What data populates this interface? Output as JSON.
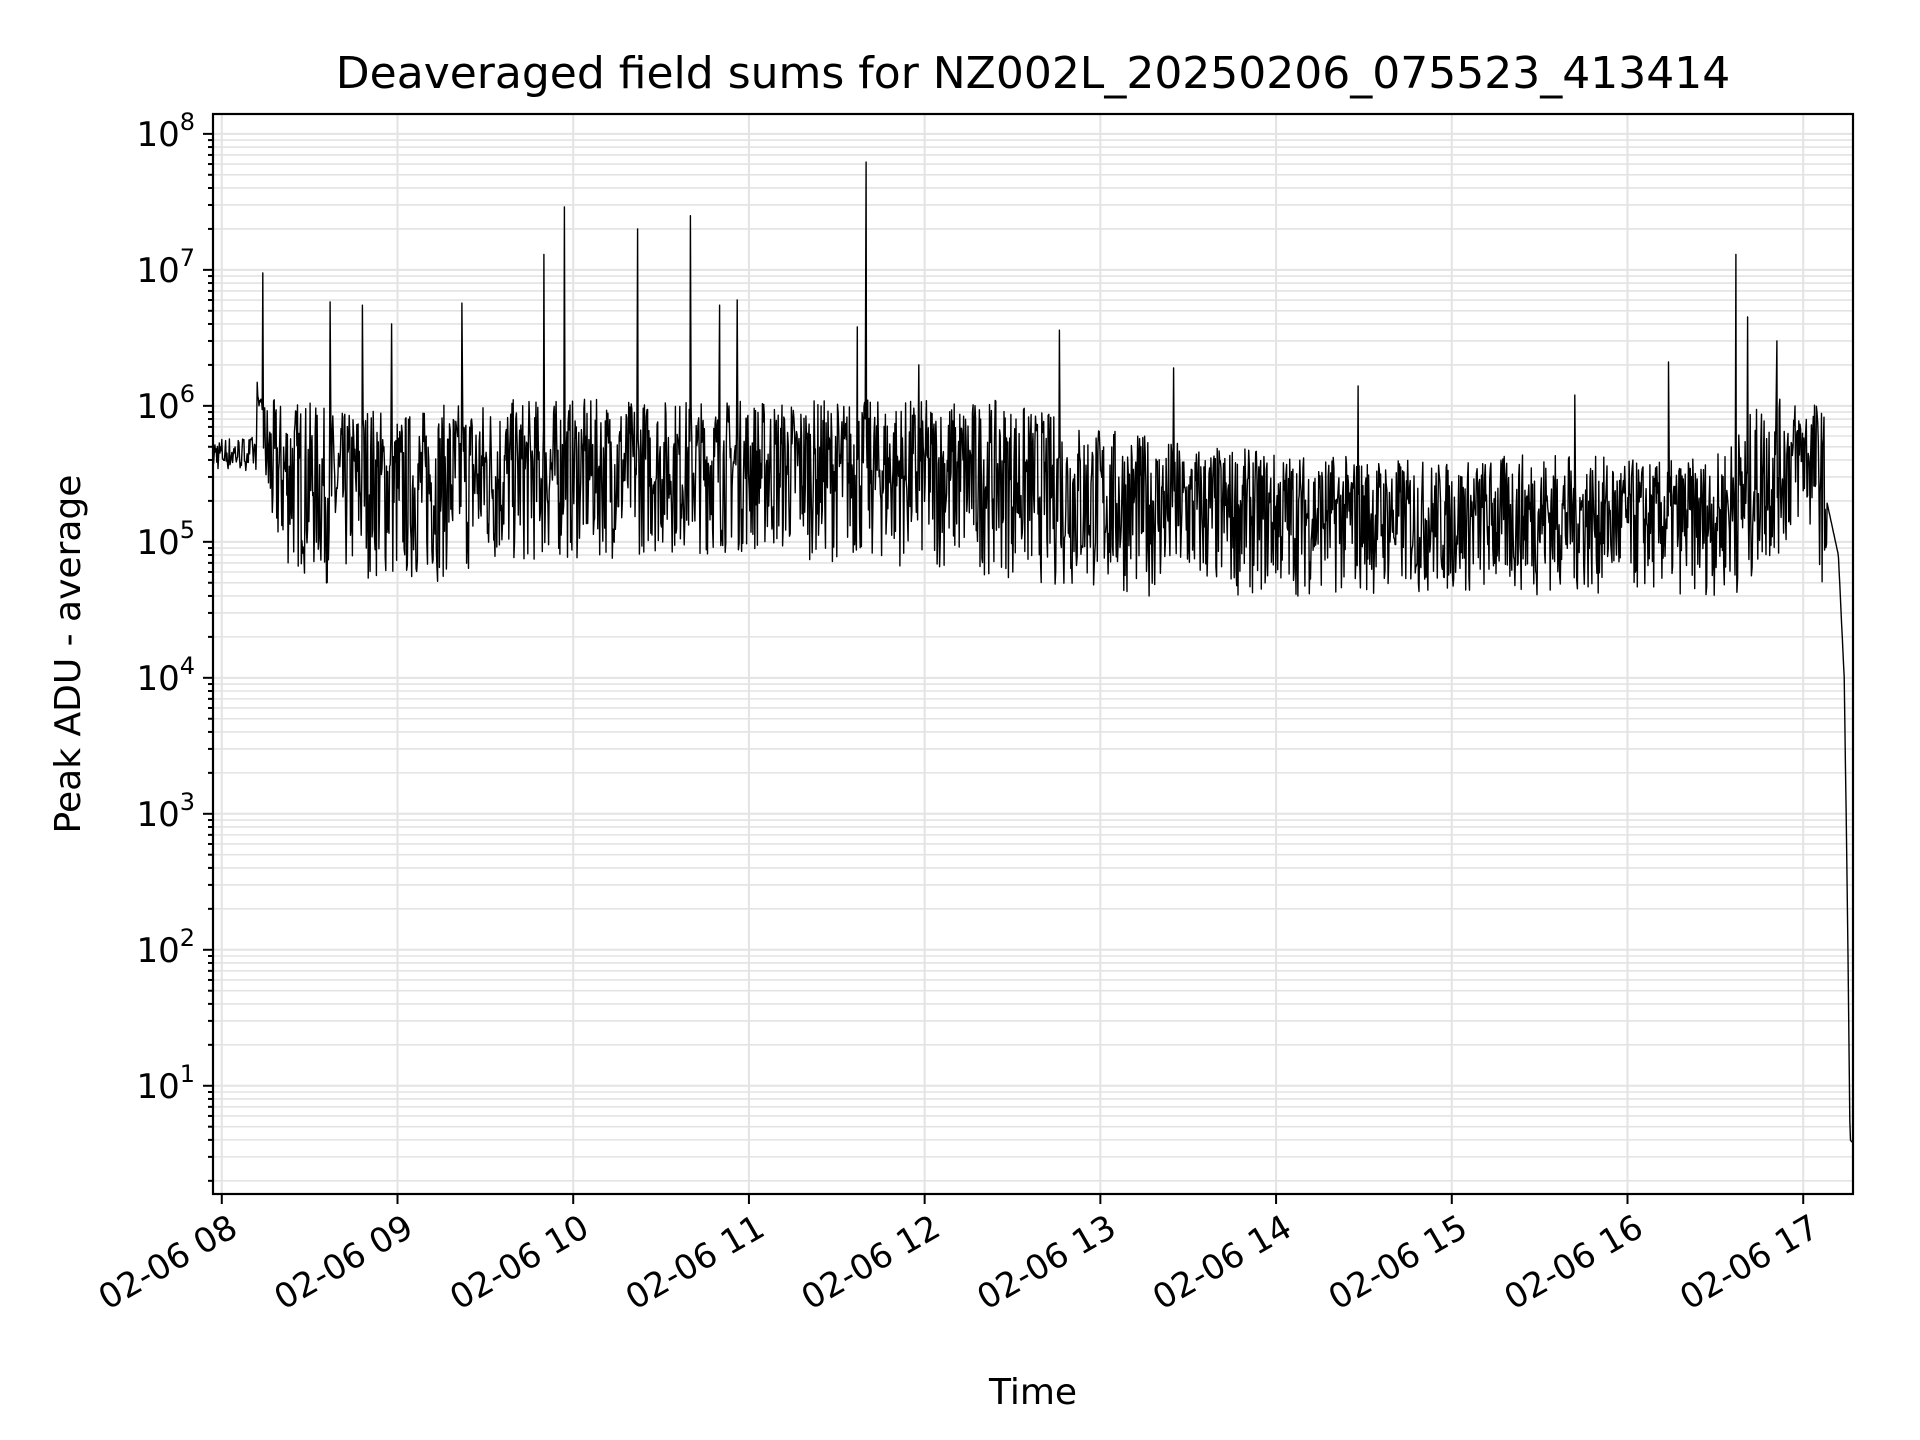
{
  "chart_data": {
    "type": "line",
    "title": "Deaveraged field sums for NZ002L_20250206_075523_413414",
    "xlabel": "Time",
    "ylabel": "Peak ADU - average",
    "yscale": "log",
    "grid": true,
    "legend": "none",
    "line_color": "#000000",
    "xlim": [
      "2025-02-06 07:57",
      "2025-02-06 17:17"
    ],
    "ylim": [
      1.6,
      140000000
    ],
    "x_ticks": [
      "2025-02-06 08:00",
      "2025-02-06 09:00",
      "2025-02-06 10:00",
      "2025-02-06 11:00",
      "2025-02-06 12:00",
      "2025-02-06 13:00",
      "2025-02-06 14:00",
      "2025-02-06 15:00",
      "2025-02-06 16:00",
      "2025-02-06 17:00"
    ],
    "x_tick_labels": [
      "02-06 08",
      "02-06 09",
      "02-06 10",
      "02-06 11",
      "02-06 12",
      "02-06 13",
      "02-06 14",
      "02-06 15",
      "02-06 16",
      "02-06 17"
    ],
    "y_ticks": [
      {
        "base": "10",
        "exp": "1",
        "value": 10
      },
      {
        "base": "10",
        "exp": "2",
        "value": 100
      },
      {
        "base": "10",
        "exp": "3",
        "value": 1000
      },
      {
        "base": "10",
        "exp": "4",
        "value": 10000
      },
      {
        "base": "10",
        "exp": "5",
        "value": 100000
      },
      {
        "base": "10",
        "exp": "6",
        "value": 1000000
      },
      {
        "base": "10",
        "exp": "7",
        "value": 10000000
      },
      {
        "base": "10",
        "exp": "8",
        "value": 100000000
      }
    ],
    "series": [
      {
        "x": [
          "2025-02-06 07:57",
          "2025-02-06 08:00",
          "2025-02-06 08:06",
          "2025-02-06 08:12",
          "2025-02-06 08:16",
          "2025-02-06 08:20",
          "2025-02-06 08:30",
          "2025-02-06 08:40",
          "2025-02-06 08:50",
          "2025-02-06 09:00",
          "2025-02-06 09:20",
          "2025-02-06 09:40",
          "2025-02-06 10:00",
          "2025-02-06 10:30",
          "2025-02-06 11:00",
          "2025-02-06 11:30",
          "2025-02-06 12:00",
          "2025-02-06 12:30",
          "2025-02-06 13:00",
          "2025-02-06 13:30",
          "2025-02-06 14:00",
          "2025-02-06 14:30",
          "2025-02-06 15:00",
          "2025-02-06 15:30",
          "2025-02-06 15:50",
          "2025-02-06 16:10",
          "2025-02-06 16:30",
          "2025-02-06 16:45",
          "2025-02-06 16:55",
          "2025-02-06 17:00",
          "2025-02-06 17:04",
          "2025-02-06 17:08",
          "2025-02-06 17:12",
          "2025-02-06 17:14",
          "2025-02-06 17:15",
          "2025-02-06 17:16",
          "2025-02-06 17:17"
        ],
        "y": [
          450000,
          600000,
          550000,
          9500000,
          500000,
          350000,
          300000,
          250000,
          300000,
          250000,
          300000,
          350000,
          400000,
          450000,
          450000,
          400000,
          350000,
          300000,
          200000,
          150000,
          130000,
          120000,
          110000,
          130000,
          120000,
          110000,
          120000,
          300000,
          500000,
          800000,
          500000,
          200000,
          80000,
          10000,
          300,
          4,
          3.8
        ]
      }
    ],
    "spikes": [
      {
        "x": "2025-02-06 08:14",
        "y": 9500000
      },
      {
        "x": "2025-02-06 08:37",
        "y": 5800000
      },
      {
        "x": "2025-02-06 08:48",
        "y": 5500000
      },
      {
        "x": "2025-02-06 08:58",
        "y": 4000000
      },
      {
        "x": "2025-02-06 09:22",
        "y": 5700000
      },
      {
        "x": "2025-02-06 09:50",
        "y": 13000000
      },
      {
        "x": "2025-02-06 09:57",
        "y": 29000000
      },
      {
        "x": "2025-02-06 10:22",
        "y": 20000000
      },
      {
        "x": "2025-02-06 10:40",
        "y": 25000000
      },
      {
        "x": "2025-02-06 10:50",
        "y": 5500000
      },
      {
        "x": "2025-02-06 10:56",
        "y": 6000000
      },
      {
        "x": "2025-02-06 11:37",
        "y": 3800000
      },
      {
        "x": "2025-02-06 11:40",
        "y": 62000000
      },
      {
        "x": "2025-02-06 11:58",
        "y": 2000000
      },
      {
        "x": "2025-02-06 12:46",
        "y": 3600000
      },
      {
        "x": "2025-02-06 13:25",
        "y": 1900000
      },
      {
        "x": "2025-02-06 14:28",
        "y": 1400000
      },
      {
        "x": "2025-02-06 15:42",
        "y": 1200000
      },
      {
        "x": "2025-02-06 16:14",
        "y": 2100000
      },
      {
        "x": "2025-02-06 16:37",
        "y": 13000000
      },
      {
        "x": "2025-02-06 16:41",
        "y": 4500000
      },
      {
        "x": "2025-02-06 16:51",
        "y": 3000000
      }
    ]
  }
}
